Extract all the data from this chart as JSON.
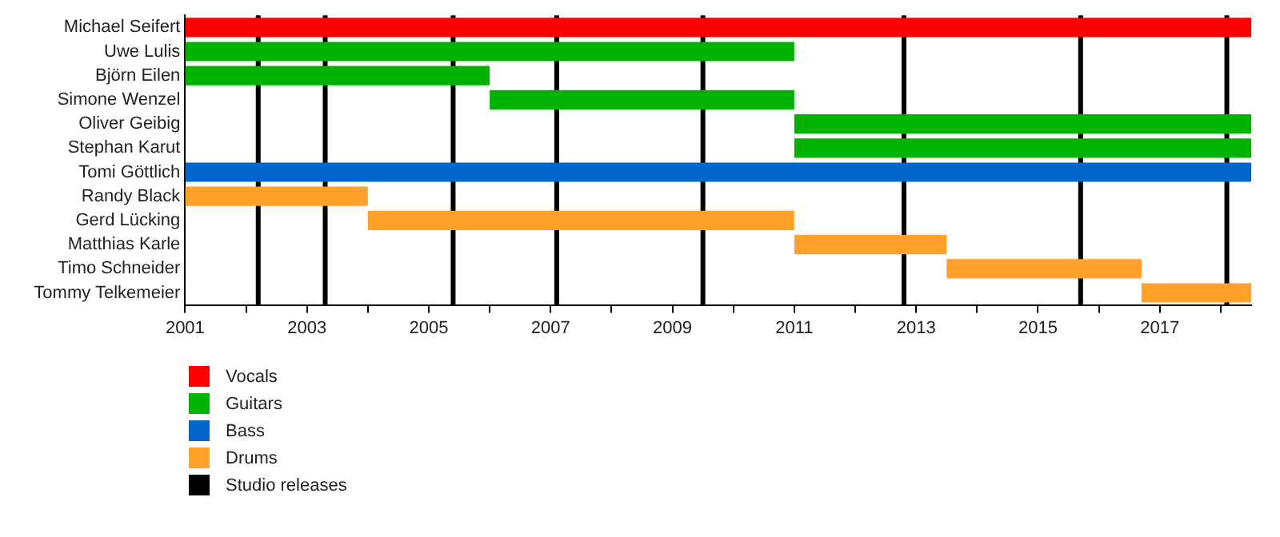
{
  "chart_data": {
    "type": "bar",
    "orientation": "horizontal",
    "categories": [
      "Michael Seifert",
      "Uwe Lulis",
      "Björn Eilen",
      "Simone Wenzel",
      "Oliver Geibig",
      "Stephan Karut",
      "Tomi Göttlich",
      "Randy Black",
      "Gerd Lücking",
      "Matthias Karle",
      "Timo Schneider",
      "Tommy Telkemeier"
    ],
    "series": [
      {
        "name": "Vocals",
        "color": "#ff0000",
        "base": [
          2001,
          null,
          null,
          null,
          null,
          null,
          null,
          null,
          null,
          null,
          null,
          null
        ],
        "values": [
          17.5,
          null,
          null,
          null,
          null,
          null,
          null,
          null,
          null,
          null,
          null,
          null
        ]
      },
      {
        "name": "Guitars",
        "color": "#00b300",
        "base": [
          null,
          2001,
          2001,
          2006,
          2011,
          2011,
          null,
          null,
          null,
          null,
          null,
          null
        ],
        "values": [
          null,
          10,
          5,
          5,
          7.5,
          7.5,
          null,
          null,
          null,
          null,
          null,
          null
        ]
      },
      {
        "name": "Bass",
        "color": "#0066cc",
        "base": [
          null,
          null,
          null,
          null,
          null,
          null,
          2001,
          null,
          null,
          null,
          null,
          null
        ],
        "values": [
          null,
          null,
          null,
          null,
          null,
          null,
          17.5,
          null,
          null,
          null,
          null,
          null
        ]
      },
      {
        "name": "Drums",
        "color": "#ffa12b",
        "base": [
          null,
          null,
          null,
          null,
          null,
          null,
          null,
          2001,
          2004,
          2011,
          2013.5,
          2016.7
        ],
        "values": [
          null,
          null,
          null,
          null,
          null,
          null,
          null,
          3,
          7,
          2.5,
          3.2,
          1.8
        ]
      }
    ],
    "xlim": [
      2001,
      2018.5
    ],
    "xticks": [
      2001,
      {
        "value": 2002,
        "label": null
      },
      2003,
      {
        "value": 2004,
        "label": null
      },
      2005,
      {
        "value": 2006,
        "label": null
      },
      2007,
      {
        "value": 2008,
        "label": null
      },
      2009,
      {
        "value": 2010,
        "label": null
      },
      2011,
      {
        "value": 2012,
        "label": null
      },
      2013,
      {
        "value": 2014,
        "label": null
      },
      2015,
      {
        "value": 2016,
        "label": null
      },
      2017,
      {
        "value": 2018,
        "label": null
      }
    ],
    "ref_lines": [
      {
        "axis": "x",
        "value": 2002.2,
        "label": "Studio releases",
        "color": "#000000"
      },
      {
        "axis": "x",
        "value": 2003.3,
        "color": "#000000"
      },
      {
        "axis": "x",
        "value": 2005.4,
        "color": "#000000"
      },
      {
        "axis": "x",
        "value": 2007.1,
        "color": "#000000"
      },
      {
        "axis": "x",
        "value": 2009.5,
        "color": "#000000"
      },
      {
        "axis": "x",
        "value": 2012.8,
        "color": "#000000"
      },
      {
        "axis": "x",
        "value": 2015.7,
        "color": "#000000"
      },
      {
        "axis": "x",
        "value": 2018.1,
        "color": "#000000"
      }
    ],
    "grid": false,
    "legend": "bottom left"
  }
}
